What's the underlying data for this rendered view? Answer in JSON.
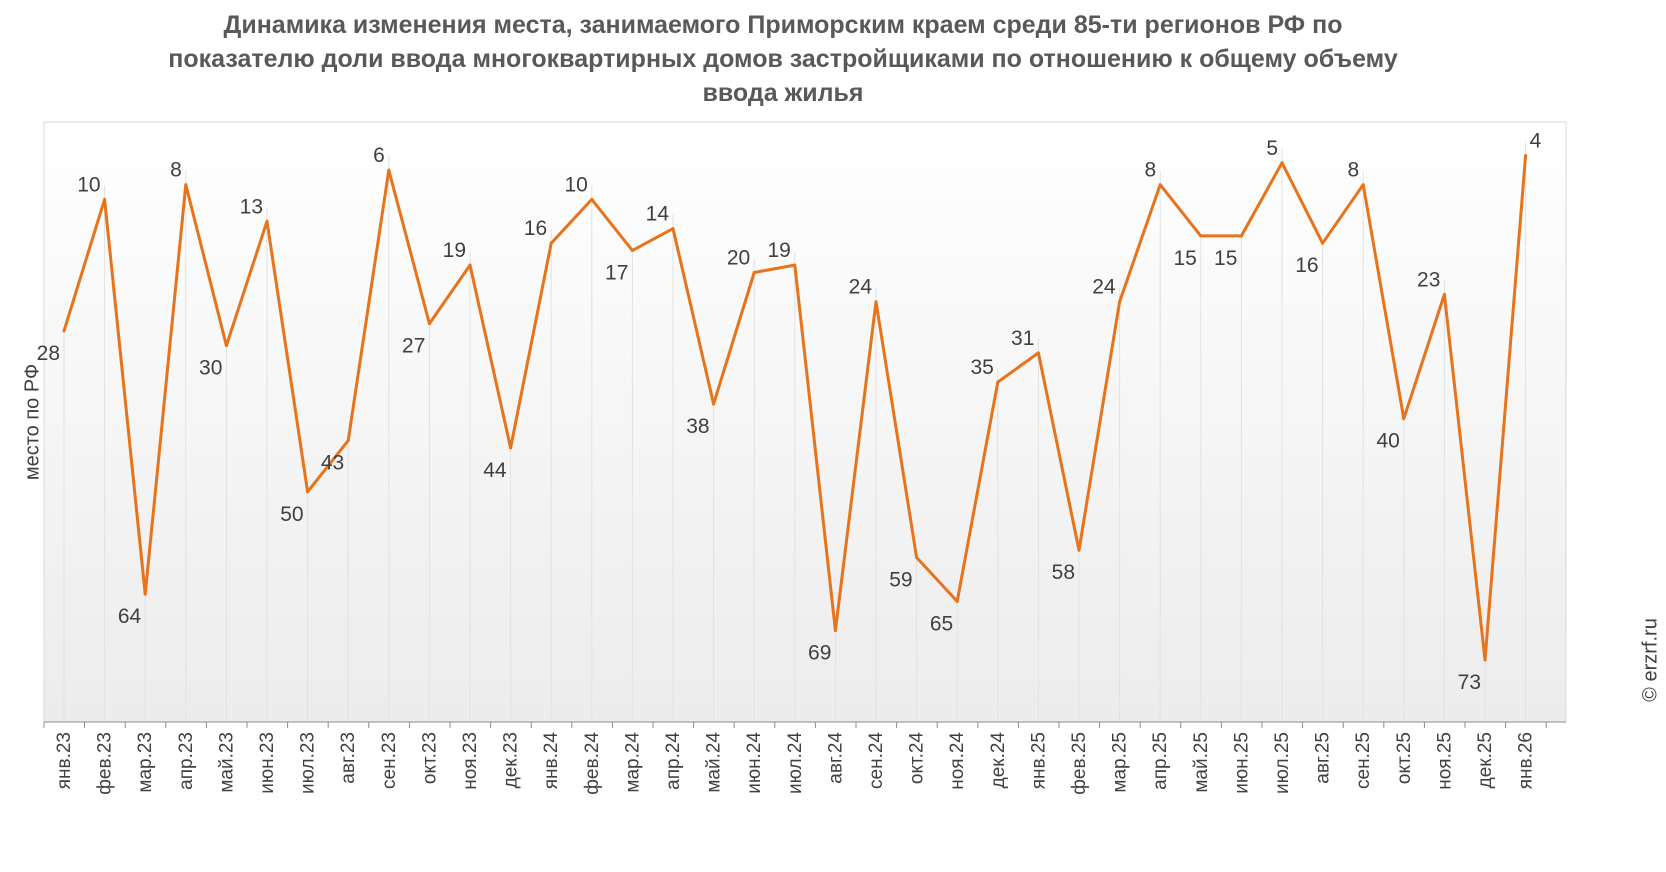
{
  "chart_data": {
    "type": "line",
    "title": "Динамика изменения места, занимаемого Приморским краем среди 85-ти регионов РФ по показателю доли ввода многоквартирных домов застройщиками по отношению к общему объему ввода жилья",
    "xlabel": "",
    "ylabel": "место по РФ",
    "y_axis_inverted": true,
    "ylim": [
      1,
      85
    ],
    "grid": "vertical",
    "line_color": "#E8731A",
    "categories": [
      "янв.23",
      "фев.23",
      "мар.23",
      "апр.23",
      "май.23",
      "июн.23",
      "июл.23",
      "авг.23",
      "сен.23",
      "окт.23",
      "ноя.23",
      "дек.23",
      "янв.24",
      "фев.24",
      "мар.24",
      "апр.24",
      "май.24",
      "июн.24",
      "июл.24",
      "авг.24",
      "сен.24",
      "окт.24",
      "ноя.24",
      "дек.24",
      "янв.25",
      "фев.25",
      "мар.25",
      "апр.25",
      "май.25",
      "июн.25",
      "июл.25",
      "авг.25",
      "сен.25",
      "окт.25",
      "ноя.25",
      "дек.25",
      "янв.26"
    ],
    "series": [
      {
        "values": [
          28,
          10,
          64,
          8,
          30,
          13,
          50,
          43,
          6,
          27,
          19,
          44,
          16,
          10,
          17,
          14,
          38,
          20,
          19,
          69,
          24,
          59,
          65,
          35,
          31,
          58,
          24,
          8,
          15,
          15,
          5,
          16,
          8,
          40,
          23,
          73,
          4
        ]
      }
    ],
    "label_positions": [
      "below",
      "above",
      "below",
      "above",
      "below",
      "above",
      "below",
      "below",
      "above",
      "below",
      "above",
      "below",
      "above",
      "above",
      "below",
      "above",
      "below",
      "above",
      "above",
      "below",
      "above",
      "below",
      "below",
      "above",
      "above",
      "below",
      "above",
      "above",
      "below",
      "below",
      "above",
      "below",
      "above",
      "below",
      "above",
      "below",
      "above"
    ]
  },
  "copyright": "© erzrf.ru"
}
